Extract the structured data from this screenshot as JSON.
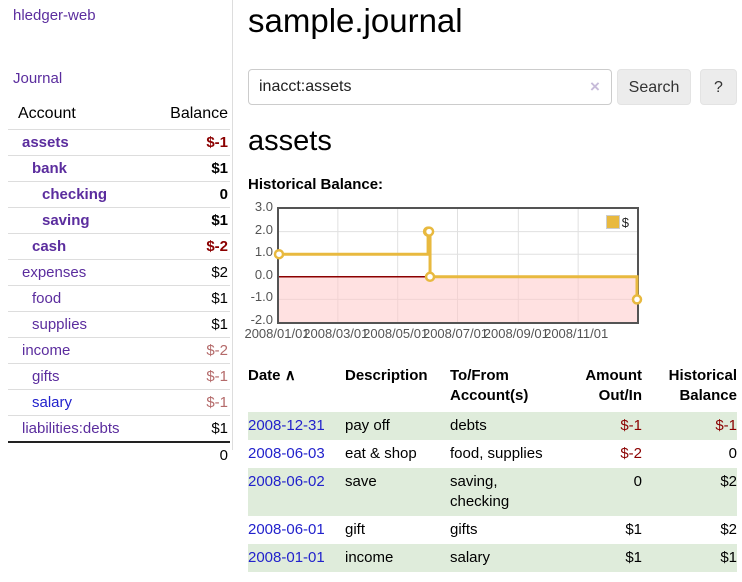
{
  "brand": "hledger-web",
  "nav": {
    "journal": "Journal"
  },
  "colors": {
    "link_purple": "#5b2d9e",
    "link_blue": "#2222cc",
    "negative_dark": "#8b0000",
    "negative_light": "#b46a6a",
    "row_green": "#dfecdb",
    "chart_line_gold": "#e8b93f"
  },
  "sidebar": {
    "headers": {
      "account": "Account",
      "balance": "Balance"
    },
    "rows": [
      {
        "name": "assets",
        "balance": "$-1"
      },
      {
        "name": "bank",
        "balance": "$1"
      },
      {
        "name": "checking",
        "balance": "0"
      },
      {
        "name": "saving",
        "balance": "$1"
      },
      {
        "name": "cash",
        "balance": "$-2"
      },
      {
        "name": "expenses",
        "balance": "$2"
      },
      {
        "name": "food",
        "balance": "$1"
      },
      {
        "name": "supplies",
        "balance": "$1"
      },
      {
        "name": "income",
        "balance": "$-2"
      },
      {
        "name": "gifts",
        "balance": "$-1"
      },
      {
        "name": "salary",
        "balance": "$-1"
      },
      {
        "name": "liabilities:debts",
        "balance": "$1"
      }
    ],
    "total": "0"
  },
  "main": {
    "title": "sample.journal",
    "search": {
      "value": "inacct:assets",
      "clear_icon": "×",
      "button_label": "Search",
      "help_label": "?"
    },
    "account_heading": "assets",
    "chart_title": "Historical Balance:"
  },
  "chart_data": {
    "type": "line",
    "title": "Historical Balance",
    "step": true,
    "series": [
      {
        "name": "$",
        "points": [
          {
            "date": "2008-01-01",
            "day": 0,
            "value": 1
          },
          {
            "date": "2008-06-01",
            "day": 152,
            "value": 2
          },
          {
            "date": "2008-06-02",
            "day": 153,
            "value": 2
          },
          {
            "date": "2008-06-03",
            "day": 154,
            "value": 0
          },
          {
            "date": "2008-12-31",
            "day": 365,
            "value": -1
          }
        ]
      }
    ],
    "xticks": [
      {
        "day": 0,
        "label": "2008/01/01"
      },
      {
        "day": 60,
        "label": "2008/03/01"
      },
      {
        "day": 121,
        "label": "2008/05/01"
      },
      {
        "day": 182,
        "label": "2008/07/01"
      },
      {
        "day": 244,
        "label": "2008/09/01"
      },
      {
        "day": 305,
        "label": "2008/11/01"
      }
    ],
    "yticks": [
      {
        "value": 3,
        "label": "3.0"
      },
      {
        "value": 2,
        "label": "2.0"
      },
      {
        "value": 1,
        "label": "1.0"
      },
      {
        "value": 0,
        "label": "0.0"
      },
      {
        "value": -1,
        "label": "-1.0"
      },
      {
        "value": -2,
        "label": "-2.0"
      }
    ],
    "xlim_days": [
      0,
      365
    ],
    "ylim": [
      -2,
      3
    ],
    "legend": {
      "label": "$",
      "position": "top-right"
    },
    "grid": true,
    "colors": {
      "line": "#e8b93f",
      "grid": "#e0e0e0",
      "zero_line": "#8b0000",
      "below_zero_fill": "#ffc8c8",
      "border": "#545454",
      "tick_text": "#545454"
    }
  },
  "register": {
    "headers": {
      "date": "Date",
      "sort_icon": "∧",
      "description": "Description",
      "account_line1": "To/From",
      "account_line2": "Account(s)",
      "amount_line1": "Amount",
      "amount_line2": "Out/In",
      "balance_line1": "Historical",
      "balance_line2": "Balance"
    },
    "rows": [
      {
        "date": "2008-12-31",
        "description": "pay off",
        "accounts": "debts",
        "amount": "$-1",
        "balance": "$-1"
      },
      {
        "date": "2008-06-03",
        "description": "eat & shop",
        "accounts": "food, supplies",
        "amount": "$-2",
        "balance": "0"
      },
      {
        "date": "2008-06-02",
        "description": "save",
        "accounts": "saving, checking",
        "amount": "0",
        "balance": "$2"
      },
      {
        "date": "2008-06-01",
        "description": "gift",
        "accounts": "gifts",
        "amount": "$1",
        "balance": "$2"
      },
      {
        "date": "2008-01-01",
        "description": "income",
        "accounts": "salary",
        "amount": "$1",
        "balance": "$1"
      }
    ]
  }
}
